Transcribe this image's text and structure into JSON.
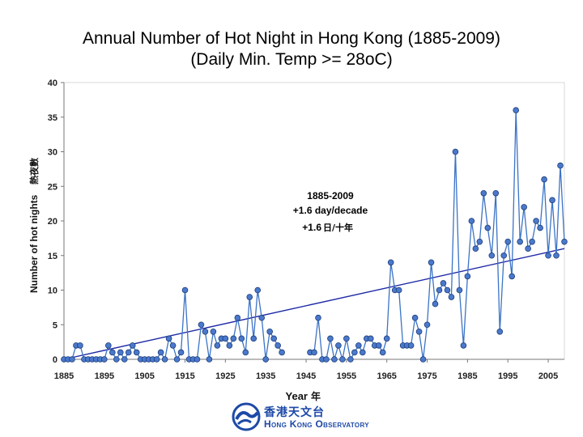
{
  "chart_data": {
    "type": "line",
    "title_line1": "Annual Number of Hot Night in Hong Kong (1885-2009)",
    "title_line2": "(Daily Min. Temp >= 28oC)",
    "xlabel": "Year",
    "xlabel_zh": "年",
    "ylabel": "Number of hot nights",
    "ylabel_zh": "熱夜數",
    "ylim": [
      0,
      40
    ],
    "xlim": [
      1885,
      2009
    ],
    "yticks": [
      0,
      5,
      10,
      15,
      20,
      25,
      30,
      35,
      40
    ],
    "xticks": [
      1885,
      1895,
      1905,
      1915,
      1925,
      1935,
      1945,
      1955,
      1965,
      1975,
      1985,
      1995,
      2005
    ],
    "annotation": {
      "line1": "1885-2009",
      "line2": "+1.6 day/decade",
      "line3": "+1.6",
      "line3_zh": "日/十年"
    },
    "trend": {
      "start": [
        1885,
        0.0
      ],
      "end": [
        2009,
        16.0
      ]
    },
    "series": [
      {
        "name": "Annual hot nights",
        "x": [
          1885,
          1886,
          1887,
          1888,
          1889,
          1890,
          1891,
          1892,
          1893,
          1894,
          1895,
          1896,
          1897,
          1898,
          1899,
          1900,
          1901,
          1902,
          1903,
          1904,
          1905,
          1906,
          1907,
          1908,
          1909,
          1910,
          1911,
          1912,
          1913,
          1914,
          1915,
          1916,
          1917,
          1918,
          1919,
          1920,
          1921,
          1922,
          1923,
          1924,
          1925,
          1926,
          1927,
          1928,
          1929,
          1930,
          1931,
          1932,
          1933,
          1934,
          1935,
          1936,
          1937,
          1938,
          1939,
          1946,
          1947,
          1948,
          1949,
          1950,
          1951,
          1952,
          1953,
          1954,
          1955,
          1956,
          1957,
          1958,
          1959,
          1960,
          1961,
          1962,
          1963,
          1964,
          1965,
          1966,
          1967,
          1968,
          1969,
          1970,
          1971,
          1972,
          1973,
          1974,
          1975,
          1976,
          1977,
          1978,
          1979,
          1980,
          1981,
          1982,
          1983,
          1984,
          1985,
          1986,
          1987,
          1988,
          1989,
          1990,
          1991,
          1992,
          1993,
          1994,
          1995,
          1996,
          1997,
          1998,
          1999,
          2000,
          2001,
          2002,
          2003,
          2004,
          2005,
          2006,
          2007,
          2008,
          2009
        ],
        "values": [
          0,
          0,
          0,
          2,
          2,
          0,
          0,
          0,
          0,
          0,
          0,
          2,
          1,
          0,
          1,
          0,
          1,
          2,
          1,
          0,
          0,
          0,
          0,
          0,
          1,
          0,
          3,
          2,
          0,
          1,
          10,
          0,
          0,
          0,
          5,
          4,
          0,
          4,
          2,
          3,
          3,
          2,
          3,
          6,
          3,
          1,
          9,
          3,
          10,
          6,
          0,
          4,
          3,
          2,
          1,
          1,
          1,
          6,
          0,
          0,
          3,
          0,
          2,
          0,
          3,
          0,
          1,
          2,
          1,
          3,
          3,
          2,
          2,
          1,
          3,
          14,
          10,
          10,
          2,
          2,
          2,
          6,
          4,
          0,
          5,
          14,
          8,
          10,
          11,
          10,
          9,
          30,
          10,
          2,
          12,
          20,
          16,
          17,
          24,
          19,
          15,
          24,
          4,
          15,
          17,
          12,
          36,
          17,
          22,
          16,
          17,
          20,
          19,
          26,
          15,
          23,
          15,
          28,
          17
        ]
      }
    ],
    "colors": {
      "line": "#3b73c6",
      "marker_fill": "#4a79cc",
      "marker_edge": "#1e3d7a",
      "trend": "#1f2aa6",
      "logo": "#1d49a7"
    }
  },
  "logo": {
    "name_zh": "香港天文台",
    "name_en": "Hong Kong Observatory"
  }
}
